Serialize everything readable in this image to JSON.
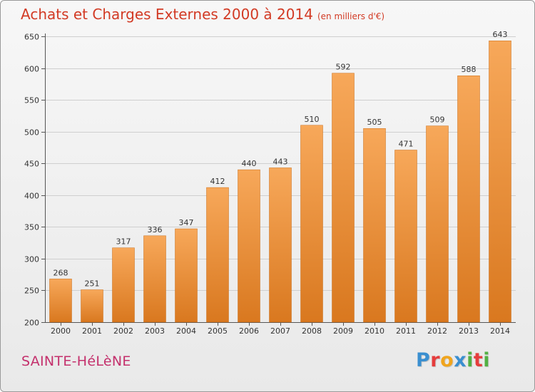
{
  "title": "Achats et Charges Externes 2000 à 2014",
  "subtitle": "(en milliers d'€)",
  "location": "SAINTE-HéLèNE",
  "logo": {
    "text": "Proxiti",
    "letters": [
      {
        "ch": "P",
        "color": "#3a8fd0"
      },
      {
        "ch": "r",
        "color": "#e53d3d"
      },
      {
        "ch": "o",
        "color": "#f0a51e"
      },
      {
        "ch": "x",
        "color": "#3a8fd0"
      },
      {
        "ch": "i",
        "color": "#52b043"
      },
      {
        "ch": "t",
        "color": "#e53d3d"
      },
      {
        "ch": "i",
        "color": "#52b043"
      }
    ]
  },
  "chart_data": {
    "type": "bar",
    "categories": [
      "2000",
      "2001",
      "2002",
      "2003",
      "2004",
      "2005",
      "2006",
      "2007",
      "2008",
      "2009",
      "2010",
      "2011",
      "2012",
      "2013",
      "2014"
    ],
    "values": [
      268,
      251,
      317,
      336,
      347,
      412,
      440,
      443,
      510,
      592,
      505,
      471,
      509,
      588,
      643
    ],
    "ylim": [
      200,
      650
    ],
    "yticks": [
      200,
      250,
      300,
      350,
      400,
      450,
      500,
      550,
      600,
      650
    ],
    "grid": true,
    "bar_color_top": "#f7a85a",
    "bar_color_bottom": "#d9781f",
    "grid_color": "#cfcfcf"
  }
}
